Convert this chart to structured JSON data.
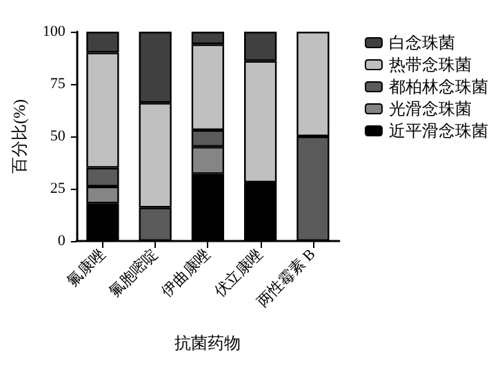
{
  "chart_data": {
    "type": "bar",
    "stacked": true,
    "xlabel": "抗菌药物",
    "ylabel": "百分比(%)",
    "categories": [
      "氟康唑",
      "氟胞嘧啶",
      "伊曲康唑",
      "伏立康唑",
      "两性霉素 B"
    ],
    "series": [
      {
        "name": "近平滑念珠菌",
        "color": "#000000",
        "values": [
          18,
          null,
          32,
          28,
          null
        ]
      },
      {
        "name": "光滑念珠菌",
        "color": "#858585",
        "values": [
          8,
          null,
          13,
          null,
          null
        ]
      },
      {
        "name": "都柏林念珠菌",
        "color": "#5a5a5a",
        "values": [
          9,
          16,
          8,
          null,
          50
        ]
      },
      {
        "name": "热带念珠菌",
        "color": "#c0c0c0",
        "values": [
          55,
          50,
          41,
          58,
          50
        ]
      },
      {
        "name": "白念珠菌",
        "color": "#404040",
        "values": [
          10,
          34,
          6,
          14,
          null
        ]
      }
    ],
    "ylim": [
      0,
      100
    ],
    "yticks": [
      0,
      25,
      50,
      75,
      100
    ],
    "grid": false,
    "legend": "right"
  }
}
